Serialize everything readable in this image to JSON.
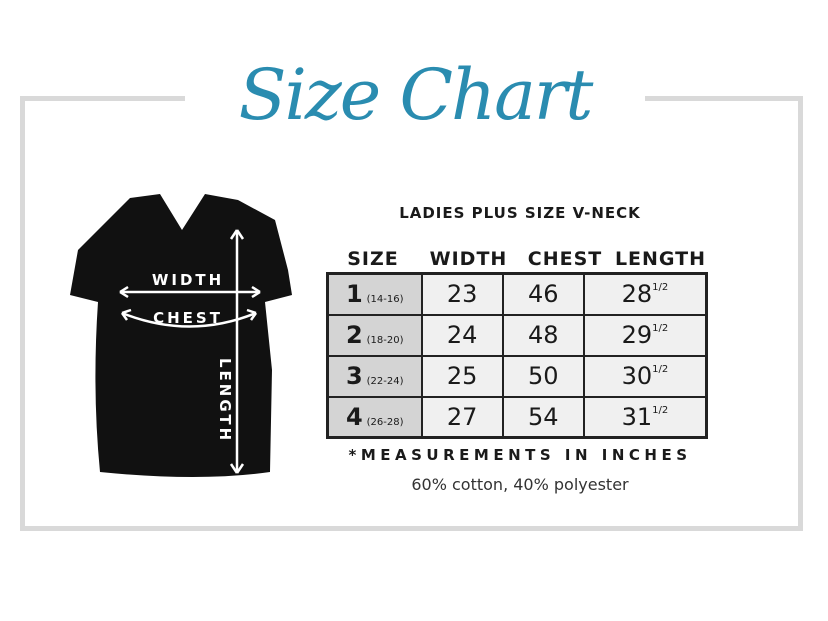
{
  "title": "Size Chart",
  "colors": {
    "title": "#2a8cb0",
    "frame": "#d9d9d9",
    "size_cell": "#d4d4d4",
    "cell": "#f0f0f0"
  },
  "shirt_labels": {
    "width": "WIDTH",
    "chest": "CHEST",
    "length": "LENGTH"
  },
  "subtitle": "LADIES PLUS SIZE V-NECK",
  "headers": [
    "SIZE",
    "WIDTH",
    "CHEST",
    "LENGTH"
  ],
  "rows": [
    {
      "size": "1",
      "range": "(14-16)",
      "width": "23",
      "chest": "46",
      "length": "28",
      "frac": "1/2"
    },
    {
      "size": "2",
      "range": "(18-20)",
      "width": "24",
      "chest": "48",
      "length": "29",
      "frac": "1/2"
    },
    {
      "size": "3",
      "range": "(22-24)",
      "width": "25",
      "chest": "50",
      "length": "30",
      "frac": "1/2"
    },
    {
      "size": "4",
      "range": "(26-28)",
      "width": "27",
      "chest": "54",
      "length": "31",
      "frac": "1/2"
    }
  ],
  "note": "*MEASUREMENTS IN INCHES",
  "fabric": "60% cotton, 40% polyester"
}
